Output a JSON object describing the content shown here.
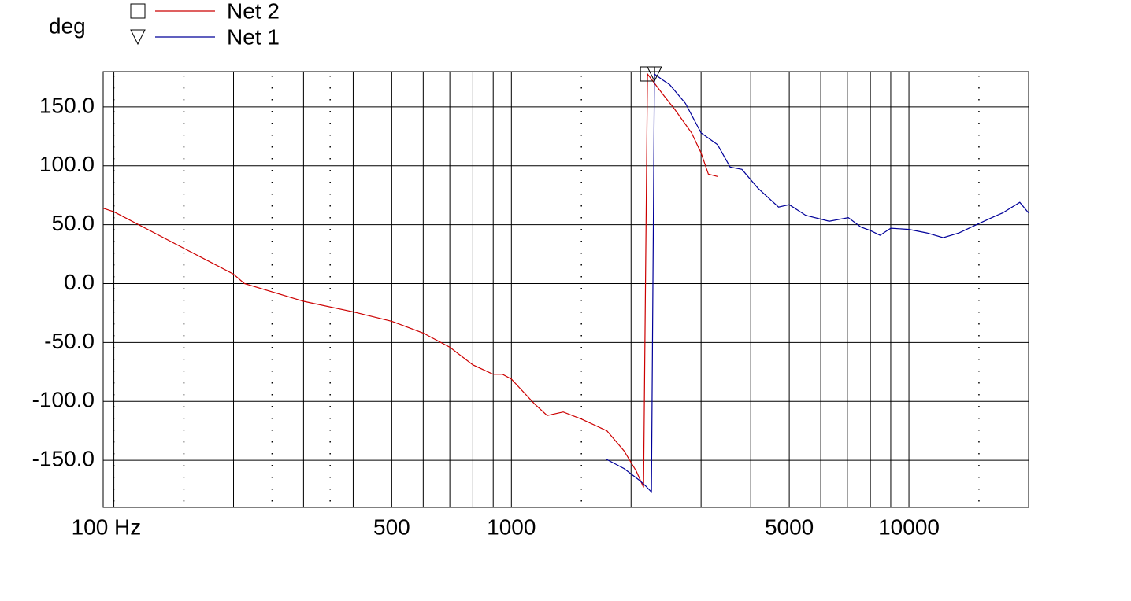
{
  "chart_data": {
    "type": "line",
    "y_label": "deg",
    "xscale": "log",
    "xlim": [
      94,
      20000
    ],
    "ylim": [
      -190,
      180
    ],
    "xticks": [
      {
        "value": 100,
        "label": "100 Hz"
      },
      500,
      1000,
      5000,
      10000
    ],
    "yticks": [
      {
        "value": 150,
        "label": "150.0"
      },
      {
        "value": 100,
        "label": "100.0"
      },
      {
        "value": 50,
        "label": "50.0"
      },
      {
        "value": 0,
        "label": "0.0"
      },
      {
        "value": -50,
        "label": "-50.0"
      },
      {
        "value": -100,
        "label": "-100.0"
      },
      {
        "value": -150,
        "label": "-150.0"
      }
    ],
    "x_gridlines": [
      100,
      200,
      300,
      400,
      500,
      600,
      700,
      800,
      900,
      1000,
      2000,
      3000,
      4000,
      5000,
      6000,
      7000,
      8000,
      9000,
      10000
    ],
    "x_minor_gridlines": [
      100,
      150,
      250,
      350,
      1500,
      15000
    ],
    "grid": true,
    "series": [
      {
        "name": "Net 2",
        "color": "#cc0000",
        "marker": "square",
        "x": [
          94,
          100,
          150,
          200,
          213,
          300,
          400,
          500,
          600,
          700,
          800,
          900,
          950,
          1000,
          1142,
          1230,
          1350,
          1500,
          1740,
          1920,
          2060,
          2150,
          2200,
          2400,
          2575,
          2840,
          3000,
          3130,
          3300
        ],
        "values": [
          64,
          61,
          30,
          8,
          0,
          -15,
          -24,
          -32,
          -42,
          -54,
          -69,
          -77,
          -77,
          -81,
          -102,
          -112,
          -109,
          -115,
          -125,
          -142,
          -159,
          -173,
          178,
          161,
          148,
          128,
          111,
          93,
          91
        ]
      },
      {
        "name": "Net 1",
        "color": "#000099",
        "marker": "triangle",
        "x": [
          1730,
          1920,
          2100,
          2180,
          2250,
          2290,
          2400,
          2500,
          2740,
          3000,
          3300,
          3550,
          3800,
          4170,
          4700,
          5000,
          5500,
          6300,
          7040,
          7570,
          8000,
          8460,
          9000,
          10000,
          11100,
          12200,
          13370,
          15000,
          16400,
          17200,
          19000,
          20000
        ],
        "values": [
          -149,
          -157,
          -167,
          -172,
          -177,
          178,
          173,
          169,
          153,
          128,
          118,
          99,
          97,
          81,
          65,
          67,
          58,
          53,
          56,
          48,
          45,
          41,
          47,
          46,
          43,
          39,
          43,
          51,
          57,
          60,
          69,
          60
        ]
      }
    ]
  }
}
